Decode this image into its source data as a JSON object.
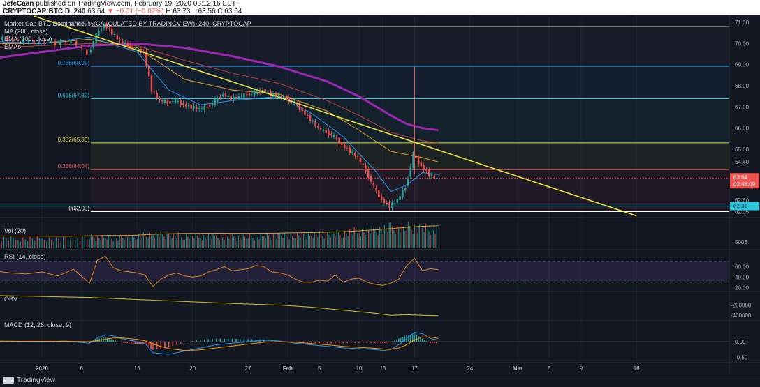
{
  "header": {
    "author": "JefeCaan",
    "published": "published on TradingView.com, February 19, 2020 08:12:16 EST",
    "symbol": "CRYPTOCAP:BTC.D, 240",
    "ohlc_pre": "63.64",
    "change": "▼ −0.01 (−0.02%)",
    "ohlc_post": "H:63.73 L:63.56 C:63.64"
  },
  "legend": {
    "title": "Market Cap BTC Dominance, %(CALCULATED BY TRADINGVIEW), 240, CRYPTOCAP",
    "ma": "MA (200, close)",
    "ema": "EMA (200, close)",
    "emas": "EMAs"
  },
  "footer": {
    "brand": "TradingView"
  },
  "colors": {
    "bg": "#131722",
    "grid": "#1e2230",
    "up": "#26a69a",
    "down": "#ef5350",
    "trendline": "#f5eb3b",
    "ma200": "#9c27b0",
    "ema_orange": "#e0a030",
    "ema_red": "#c04040",
    "ema_green": "#2e7d32",
    "ema_blue": "#2196f3",
    "rsi": "#e08a20",
    "obv": "#d4c020",
    "macd": "#2196f3",
    "signal": "#ff9800"
  },
  "chart_data": [
    {
      "type": "line",
      "panel": "price",
      "ylabel": "%",
      "ylim": [
        61.9,
        71.2
      ],
      "yticks": [
        "71.00",
        "70.00",
        "69.00",
        "68.00",
        "67.00",
        "66.00",
        "65.00",
        "64.40",
        "63.64",
        "62.60",
        "62.05"
      ],
      "ytick_values": [
        71.0,
        70.0,
        69.0,
        68.0,
        67.0,
        66.0,
        65.0,
        64.4,
        63.64,
        62.6,
        62.05
      ],
      "price_label": "63.64",
      "countdown_label": "02:48:09",
      "support_label": "62.31",
      "x_tick_labels": [
        "2020",
        "6",
        "13",
        "20",
        "27",
        "Feb",
        "5",
        "10",
        "13",
        "17",
        "24",
        "Mar",
        "5",
        "9",
        "16"
      ],
      "x_tick_days": [
        0,
        5,
        12,
        19,
        26,
        31,
        35,
        40,
        43,
        47,
        54,
        60,
        64,
        68,
        75
      ],
      "fib_levels": [
        {
          "label": "1(70.79)",
          "value": 70.79
        },
        {
          "label": "0.786(68.92)",
          "value": 68.92
        },
        {
          "label": "0.618(67.39)",
          "value": 67.39
        },
        {
          "label": "0.382(65.30)",
          "value": 65.3
        },
        {
          "label": "0.236(64.04)",
          "value": 64.04
        },
        {
          "label": "0(62.05)",
          "value": 62.05
        }
      ],
      "fib_colors": [
        "#787b86",
        "#2196f3",
        "#26c6da",
        "#cddc39",
        "#ef5350",
        "#ffffff"
      ],
      "support_value": 62.31,
      "close_line": 63.64,
      "price": {
        "days": [
          -6,
          -4,
          -2,
          0,
          2,
          4,
          6,
          7,
          8,
          9,
          10,
          11,
          12,
          13,
          14,
          15,
          16,
          17,
          18,
          19,
          20,
          21,
          22,
          23,
          24,
          25,
          26,
          27,
          28,
          29,
          30,
          31,
          32,
          33,
          34,
          35,
          36,
          37,
          38,
          39,
          40,
          41,
          42,
          43,
          44,
          45,
          46,
          47,
          48,
          49,
          50
        ],
        "values": [
          70.3,
          70.2,
          70.1,
          70.1,
          70.0,
          70.1,
          69.5,
          70.4,
          70.9,
          70.5,
          70.1,
          69.9,
          69.7,
          69.6,
          67.8,
          67.3,
          67.2,
          67.3,
          67.1,
          67.0,
          66.9,
          67.0,
          67.3,
          67.6,
          67.4,
          67.5,
          67.6,
          67.7,
          67.8,
          67.6,
          67.5,
          67.4,
          67.2,
          66.8,
          66.4,
          66.0,
          65.8,
          65.6,
          65.2,
          64.9,
          64.6,
          64.0,
          63.2,
          62.6,
          62.3,
          62.6,
          63.2,
          64.7,
          64.2,
          63.8,
          63.6
        ]
      },
      "ma200": {
        "days": [
          -6,
          0,
          6,
          12,
          18,
          24,
          30,
          36,
          40,
          44,
          46,
          48,
          50
        ],
        "values": [
          69.3,
          69.6,
          69.9,
          70.0,
          69.8,
          69.4,
          68.9,
          68.2,
          67.5,
          66.6,
          66.2,
          66.0,
          65.9
        ]
      },
      "ema_slow": {
        "days": [
          -6,
          0,
          6,
          12,
          18,
          24,
          30,
          36,
          40,
          44,
          48,
          50
        ],
        "values": [
          69.8,
          69.9,
          70.0,
          69.9,
          69.2,
          68.6,
          68.1,
          67.3,
          66.6,
          65.8,
          65.4,
          65.3
        ]
      },
      "ema_mid": {
        "days": [
          -6,
          0,
          6,
          12,
          18,
          24,
          30,
          36,
          40,
          44,
          48,
          50
        ],
        "values": [
          70.0,
          70.0,
          70.2,
          69.8,
          68.3,
          67.8,
          67.6,
          66.8,
          65.9,
          64.9,
          64.6,
          64.4
        ]
      },
      "ema_fast": {
        "days": [
          -6,
          0,
          6,
          12,
          16,
          20,
          24,
          30,
          34,
          38,
          42,
          44,
          46,
          48,
          50
        ],
        "values": [
          70.1,
          70.0,
          70.3,
          69.6,
          67.8,
          67.1,
          67.3,
          67.5,
          66.7,
          65.6,
          64.0,
          63.0,
          63.3,
          63.9,
          63.8
        ]
      },
      "trendline": {
        "days": [
          -1,
          75
        ],
        "values": [
          71.3,
          61.85
        ]
      },
      "spike": {
        "day": 47,
        "high": 68.9,
        "low": 63.8
      }
    },
    {
      "type": "bar",
      "panel": "volume",
      "title": "Vol (20)",
      "ytick": "500B",
      "days": [
        -6,
        -3,
        0,
        3,
        6,
        8,
        10,
        12,
        14,
        16,
        18,
        20,
        22,
        24,
        26,
        28,
        30,
        32,
        34,
        36,
        38,
        40,
        42,
        44,
        46,
        48,
        50
      ],
      "values": [
        230,
        220,
        225,
        210,
        260,
        250,
        240,
        280,
        330,
        300,
        290,
        270,
        280,
        260,
        270,
        280,
        290,
        300,
        310,
        330,
        360,
        400,
        430,
        480,
        500,
        470,
        440
      ],
      "ma": [
        230,
        228,
        226,
        222,
        230,
        236,
        238,
        245,
        260,
        270,
        276,
        278,
        280,
        278,
        278,
        280,
        283,
        288,
        293,
        300,
        310,
        325,
        343,
        365,
        390,
        410,
        420
      ]
    },
    {
      "type": "line",
      "panel": "rsi",
      "title": "RSI (14, close)",
      "ylim": [
        15,
        90
      ],
      "yticks": [
        "60.00",
        "40.00",
        "20.00"
      ],
      "ytick_values": [
        60,
        40,
        20
      ],
      "bands": [
        70,
        30
      ],
      "days": [
        -6,
        -4,
        -2,
        0,
        2,
        4,
        6,
        7,
        8,
        9,
        10,
        11,
        12,
        13,
        14,
        15,
        16,
        17,
        18,
        19,
        20,
        21,
        22,
        23,
        24,
        25,
        26,
        27,
        28,
        29,
        30,
        31,
        32,
        33,
        34,
        35,
        36,
        37,
        38,
        39,
        40,
        41,
        42,
        43,
        44,
        45,
        46,
        47,
        48,
        49,
        50
      ],
      "values": [
        52,
        48,
        46,
        50,
        42,
        55,
        28,
        72,
        80,
        58,
        52,
        50,
        48,
        44,
        22,
        36,
        44,
        48,
        42,
        40,
        42,
        50,
        54,
        60,
        52,
        54,
        56,
        62,
        60,
        50,
        48,
        44,
        36,
        30,
        30,
        34,
        32,
        44,
        30,
        36,
        38,
        30,
        26,
        24,
        28,
        36,
        62,
        76,
        52,
        56,
        54
      ]
    },
    {
      "type": "line",
      "panel": "obv",
      "title": "OBV",
      "ylim": [
        -480000,
        40000
      ],
      "yticks": [
        "-200000",
        "-400000"
      ],
      "ytick_values": [
        -200000,
        -400000
      ],
      "days": [
        -6,
        0,
        6,
        12,
        18,
        24,
        30,
        34,
        38,
        42,
        44,
        46,
        48,
        50
      ],
      "values": [
        -10000,
        -30000,
        -50000,
        -90000,
        -130000,
        -170000,
        -200000,
        -240000,
        -300000,
        -360000,
        -400000,
        -390000,
        -400000,
        -410000
      ]
    },
    {
      "type": "line",
      "panel": "macd",
      "title": "MACD (12, 26, close, 9)",
      "ylim": [
        -0.62,
        0.62
      ],
      "yticks": [
        "0.00",
        "-0.50"
      ],
      "ytick_values": [
        0.0,
        -0.5
      ],
      "days": [
        -6,
        -3,
        0,
        3,
        6,
        7,
        8,
        9,
        10,
        11,
        12,
        13,
        14,
        16,
        18,
        20,
        22,
        24,
        26,
        28,
        30,
        32,
        34,
        36,
        38,
        40,
        42,
        43,
        44,
        45,
        46,
        47,
        48,
        49,
        50
      ],
      "macd": [
        0.02,
        0.01,
        0.0,
        0.02,
        -0.05,
        0.12,
        0.22,
        0.18,
        0.1,
        0.05,
        0.0,
        -0.05,
        -0.35,
        -0.4,
        -0.3,
        -0.2,
        -0.1,
        -0.05,
        0.0,
        0.05,
        0.02,
        -0.05,
        -0.1,
        -0.15,
        -0.2,
        -0.22,
        -0.25,
        -0.28,
        -0.25,
        -0.1,
        0.1,
        0.3,
        0.25,
        0.1,
        0.05
      ],
      "signal": [
        0.02,
        0.01,
        0.01,
        0.01,
        0.0,
        0.03,
        0.08,
        0.12,
        0.12,
        0.1,
        0.07,
        0.03,
        -0.08,
        -0.22,
        -0.28,
        -0.26,
        -0.2,
        -0.14,
        -0.08,
        -0.02,
        0.0,
        -0.02,
        -0.06,
        -0.1,
        -0.15,
        -0.18,
        -0.21,
        -0.23,
        -0.24,
        -0.2,
        -0.1,
        0.05,
        0.15,
        0.15,
        0.1
      ]
    }
  ]
}
